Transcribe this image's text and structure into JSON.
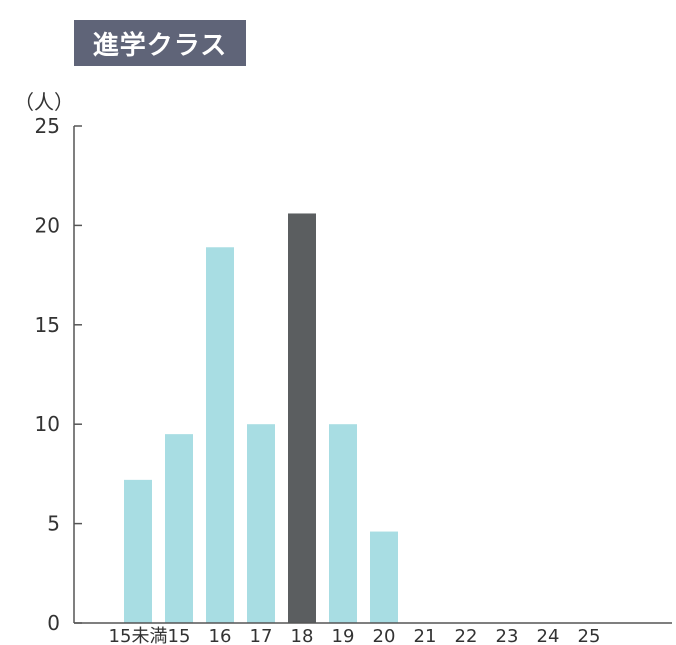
{
  "header": {
    "badge": "進学クラス",
    "unit": "（人）"
  },
  "chart_data": {
    "type": "bar",
    "title": "進学クラス",
    "ylabel": "（人）",
    "ylim": [
      0,
      25
    ],
    "yticks": [
      0,
      5,
      10,
      15,
      20,
      25
    ],
    "categories": [
      "15未満",
      "15",
      "16",
      "17",
      "18",
      "19",
      "20",
      "21",
      "22",
      "23",
      "24",
      "25"
    ],
    "values": [
      7.2,
      9.5,
      18.9,
      10,
      20.6,
      10,
      4.6,
      0,
      0,
      0,
      0,
      0
    ],
    "highlight_index": 4,
    "colors": {
      "bar": "#a8dde3",
      "highlight": "#5b5e60",
      "axis": "#555555"
    },
    "grid": false
  }
}
